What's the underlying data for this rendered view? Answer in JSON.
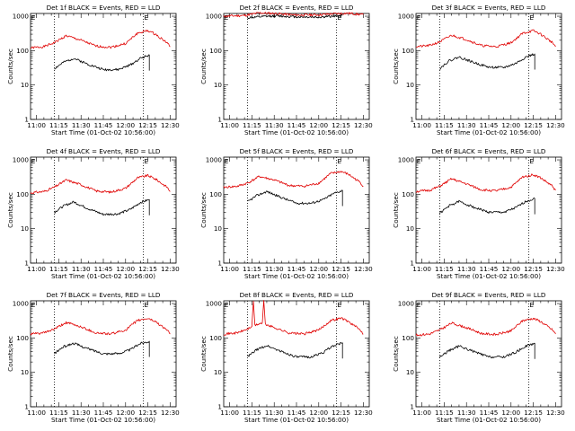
{
  "colors": {
    "events": "#000000",
    "lld": "#e00000",
    "background": "#ffffff"
  },
  "chart_data": [
    {
      "type": "line",
      "title": "Det 1f BLACK = Events, RED = LLD",
      "xlabel": "Start Time (01-Oct-02 10:56:00)",
      "ylabel": "Counts/sec",
      "x_ticks": [
        "11:00",
        "11:15",
        "11:30",
        "11:45",
        "12:00",
        "12:15",
        "12:30"
      ],
      "y_ticks": [
        "1",
        "10",
        "100",
        "1000"
      ],
      "ylim": [
        1,
        1200
      ],
      "y_scale": "log",
      "vertical_marker_times": [
        "11:12",
        "12:12"
      ],
      "marker_letters": [
        "E",
        "E"
      ],
      "series": [
        {
          "color": "red",
          "x": [
            "10:56",
            "11:05",
            "11:12",
            "11:20",
            "11:30",
            "11:40",
            "11:50",
            "12:00",
            "12:08",
            "12:15",
            "12:20",
            "12:28",
            "12:30"
          ],
          "values": [
            120,
            130,
            170,
            270,
            200,
            135,
            125,
            160,
            320,
            380,
            300,
            170,
            130
          ]
        },
        {
          "color": "black",
          "x": [
            "11:12",
            "11:18",
            "11:25",
            "11:35",
            "11:45",
            "11:55",
            "12:03",
            "12:10",
            "12:16"
          ],
          "values": [
            30,
            45,
            60,
            40,
            28,
            28,
            38,
            60,
            75
          ]
        }
      ]
    },
    {
      "type": "line",
      "title": "Det 2f BLACK = Events, RED = LLD",
      "xlabel": "Start Time (01-Oct-02 10:56:00)",
      "ylabel": "Counts/sec",
      "x_ticks": [
        "11:00",
        "11:15",
        "11:30",
        "11:45",
        "12:00",
        "12:15",
        "12:30"
      ],
      "y_ticks": [
        "1",
        "10",
        "100",
        "1000"
      ],
      "ylim": [
        1,
        1200
      ],
      "y_scale": "log",
      "vertical_marker_times": [
        "11:12",
        "12:12"
      ],
      "marker_letters": [
        "E",
        "E"
      ],
      "series": [
        {
          "color": "red",
          "x": [
            "10:56",
            "11:10",
            "11:20",
            "11:30",
            "11:45",
            "12:00",
            "12:10",
            "12:20",
            "12:30"
          ],
          "values": [
            1000,
            1050,
            1250,
            1200,
            1080,
            1100,
            1180,
            1220,
            1100
          ]
        },
        {
          "color": "black",
          "x": [
            "11:12",
            "11:20",
            "11:30",
            "11:45",
            "12:00",
            "12:10",
            "12:16"
          ],
          "values": [
            900,
            950,
            1020,
            960,
            940,
            1000,
            1050
          ]
        }
      ]
    },
    {
      "type": "line",
      "title": "Det 3f BLACK = Events, RED = LLD",
      "xlabel": "Start Time (01-Oct-02 10:56:00)",
      "ylabel": "Counts/sec",
      "x_ticks": [
        "11:00",
        "11:15",
        "11:30",
        "11:45",
        "12:00",
        "12:15",
        "12:30"
      ],
      "y_ticks": [
        "1",
        "10",
        "100",
        "1000"
      ],
      "ylim": [
        1,
        1200
      ],
      "y_scale": "log",
      "vertical_marker_times": [
        "11:12",
        "12:12"
      ],
      "marker_letters": [
        "E",
        "E"
      ],
      "series": [
        {
          "color": "red",
          "x": [
            "10:56",
            "11:05",
            "11:12",
            "11:20",
            "11:30",
            "11:40",
            "11:50",
            "12:00",
            "12:08",
            "12:15",
            "12:20",
            "12:28",
            "12:30"
          ],
          "values": [
            130,
            140,
            180,
            280,
            210,
            140,
            130,
            170,
            320,
            380,
            300,
            170,
            130
          ]
        },
        {
          "color": "black",
          "x": [
            "11:12",
            "11:18",
            "11:25",
            "11:35",
            "11:45",
            "11:55",
            "12:03",
            "12:10",
            "12:16"
          ],
          "values": [
            30,
            50,
            65,
            45,
            33,
            32,
            42,
            65,
            80
          ]
        }
      ]
    },
    {
      "type": "line",
      "title": "Det 4f BLACK = Events, RED = LLD",
      "xlabel": "Start Time (01-Oct-02 10:56:00)",
      "ylabel": "Counts/sec",
      "x_ticks": [
        "11:00",
        "11:15",
        "11:30",
        "11:45",
        "12:00",
        "12:15",
        "12:30"
      ],
      "y_ticks": [
        "1",
        "10",
        "100",
        "1000"
      ],
      "ylim": [
        1,
        1200
      ],
      "y_scale": "log",
      "vertical_marker_times": [
        "11:12",
        "12:12"
      ],
      "marker_letters": [
        "E",
        "E"
      ],
      "series": [
        {
          "color": "red",
          "x": [
            "10:56",
            "11:05",
            "11:12",
            "11:20",
            "11:30",
            "11:40",
            "11:50",
            "12:00",
            "12:08",
            "12:15",
            "12:20",
            "12:28",
            "12:30"
          ],
          "values": [
            110,
            120,
            160,
            260,
            190,
            125,
            115,
            150,
            300,
            350,
            280,
            160,
            120
          ]
        },
        {
          "color": "black",
          "x": [
            "11:12",
            "11:18",
            "11:25",
            "11:35",
            "11:45",
            "11:55",
            "12:03",
            "12:10",
            "12:16"
          ],
          "values": [
            30,
            45,
            60,
            38,
            26,
            27,
            36,
            58,
            70
          ]
        }
      ]
    },
    {
      "type": "line",
      "title": "Det 5f BLACK = Events, RED = LLD",
      "xlabel": "Start Time (01-Oct-02 10:56:00)",
      "ylabel": "Counts/sec",
      "x_ticks": [
        "11:00",
        "11:15",
        "11:30",
        "11:45",
        "12:00",
        "12:15",
        "12:30"
      ],
      "y_ticks": [
        "1",
        "10",
        "100",
        "1000"
      ],
      "ylim": [
        1,
        1200
      ],
      "y_scale": "log",
      "vertical_marker_times": [
        "11:12",
        "12:12"
      ],
      "marker_letters": [
        "E",
        "E"
      ],
      "series": [
        {
          "color": "red",
          "x": [
            "10:56",
            "11:05",
            "11:12",
            "11:20",
            "11:30",
            "11:40",
            "11:50",
            "12:00",
            "12:08",
            "12:15",
            "12:20",
            "12:28",
            "12:30"
          ],
          "values": [
            160,
            170,
            210,
            330,
            260,
            180,
            170,
            210,
            400,
            460,
            380,
            220,
            170
          ]
        },
        {
          "color": "black",
          "x": [
            "11:12",
            "11:18",
            "11:25",
            "11:35",
            "11:45",
            "11:55",
            "12:03",
            "12:10",
            "12:16"
          ],
          "values": [
            60,
            90,
            120,
            80,
            55,
            55,
            70,
            105,
            130
          ]
        }
      ]
    },
    {
      "type": "line",
      "title": "Det 6f BLACK = Events, RED = LLD",
      "xlabel": "Start Time (01-Oct-02 10:56:00)",
      "ylabel": "Counts/sec",
      "x_ticks": [
        "11:00",
        "11:15",
        "11:30",
        "11:45",
        "12:00",
        "12:15",
        "12:30"
      ],
      "y_ticks": [
        "1",
        "10",
        "100",
        "1000"
      ],
      "ylim": [
        1,
        1200
      ],
      "y_scale": "log",
      "vertical_marker_times": [
        "11:12",
        "12:12"
      ],
      "marker_letters": [
        "E",
        "E"
      ],
      "series": [
        {
          "color": "red",
          "x": [
            "10:56",
            "11:05",
            "11:12",
            "11:20",
            "11:30",
            "11:40",
            "11:50",
            "12:00",
            "12:08",
            "12:15",
            "12:20",
            "12:28",
            "12:30"
          ],
          "values": [
            120,
            130,
            170,
            280,
            200,
            135,
            125,
            160,
            320,
            370,
            300,
            170,
            130
          ]
        },
        {
          "color": "black",
          "x": [
            "11:12",
            "11:18",
            "11:25",
            "11:35",
            "11:45",
            "11:55",
            "12:03",
            "12:10",
            "12:16"
          ],
          "values": [
            28,
            45,
            62,
            42,
            30,
            30,
            40,
            62,
            75
          ]
        }
      ]
    },
    {
      "type": "line",
      "title": "Det 7f BLACK = Events, RED = LLD",
      "xlabel": "Start Time (01-Oct-02 10:56:00)",
      "ylabel": "Counts/sec",
      "x_ticks": [
        "11:00",
        "11:15",
        "11:30",
        "11:45",
        "12:00",
        "12:15",
        "12:30"
      ],
      "y_ticks": [
        "1",
        "10",
        "100",
        "1000"
      ],
      "ylim": [
        1,
        1200
      ],
      "y_scale": "log",
      "vertical_marker_times": [
        "11:12",
        "12:12"
      ],
      "marker_letters": [
        "E",
        "E"
      ],
      "series": [
        {
          "color": "red",
          "x": [
            "10:56",
            "11:05",
            "11:12",
            "11:20",
            "11:30",
            "11:40",
            "11:50",
            "12:00",
            "12:08",
            "12:15",
            "12:20",
            "12:28",
            "12:30"
          ],
          "values": [
            130,
            140,
            180,
            280,
            210,
            140,
            130,
            170,
            320,
            370,
            300,
            170,
            130
          ]
        },
        {
          "color": "black",
          "x": [
            "11:12",
            "11:18",
            "11:25",
            "11:35",
            "11:45",
            "11:55",
            "12:03",
            "12:10",
            "12:16"
          ],
          "values": [
            35,
            55,
            70,
            48,
            35,
            35,
            45,
            70,
            80
          ]
        }
      ]
    },
    {
      "type": "line",
      "title": "Det 8f BLACK = Events, RED = LLD",
      "xlabel": "Start Time (01-Oct-02 10:56:00)",
      "ylabel": "Counts/sec",
      "x_ticks": [
        "11:00",
        "11:15",
        "11:30",
        "11:45",
        "12:00",
        "12:15",
        "12:30"
      ],
      "y_ticks": [
        "1",
        "10",
        "100",
        "1000"
      ],
      "ylim": [
        1,
        1200
      ],
      "y_scale": "log",
      "vertical_marker_times": [
        "11:12",
        "12:12"
      ],
      "marker_letters": [
        "E",
        "E"
      ],
      "series": [
        {
          "color": "red",
          "x": [
            "10:56",
            "11:05",
            "11:12",
            "11:15",
            "11:16",
            "11:17",
            "11:20",
            "11:22",
            "11:23",
            "11:24",
            "11:30",
            "11:40",
            "11:50",
            "12:00",
            "12:08",
            "12:15",
            "12:20",
            "12:28",
            "12:30"
          ],
          "values": [
            130,
            140,
            180,
            220,
            1200,
            230,
            260,
            270,
            1200,
            250,
            200,
            140,
            130,
            170,
            320,
            380,
            300,
            170,
            130
          ]
        },
        {
          "color": "black",
          "x": [
            "11:12",
            "11:18",
            "11:25",
            "11:35",
            "11:45",
            "11:55",
            "12:03",
            "12:10",
            "12:16"
          ],
          "values": [
            28,
            45,
            60,
            40,
            28,
            28,
            38,
            60,
            72
          ]
        }
      ]
    },
    {
      "type": "line",
      "title": "Det 9f BLACK = Events, RED = LLD",
      "xlabel": "Start Time (01-Oct-02 10:56:00)",
      "ylabel": "Counts/sec",
      "x_ticks": [
        "11:00",
        "11:15",
        "11:30",
        "11:45",
        "12:00",
        "12:15",
        "12:30"
      ],
      "y_ticks": [
        "1",
        "10",
        "100",
        "1000"
      ],
      "ylim": [
        1,
        1200
      ],
      "y_scale": "log",
      "vertical_marker_times": [
        "11:12",
        "12:12"
      ],
      "marker_letters": [
        "E",
        "E"
      ],
      "series": [
        {
          "color": "red",
          "x": [
            "10:56",
            "11:05",
            "11:12",
            "11:20",
            "11:30",
            "11:40",
            "11:50",
            "12:00",
            "12:08",
            "12:15",
            "12:20",
            "12:28",
            "12:30"
          ],
          "values": [
            120,
            130,
            170,
            270,
            200,
            135,
            125,
            160,
            320,
            370,
            300,
            170,
            130
          ]
        },
        {
          "color": "black",
          "x": [
            "11:12",
            "11:18",
            "11:25",
            "11:35",
            "11:45",
            "11:55",
            "12:03",
            "12:10",
            "12:16"
          ],
          "values": [
            28,
            42,
            58,
            40,
            28,
            28,
            38,
            58,
            70
          ]
        }
      ]
    }
  ]
}
